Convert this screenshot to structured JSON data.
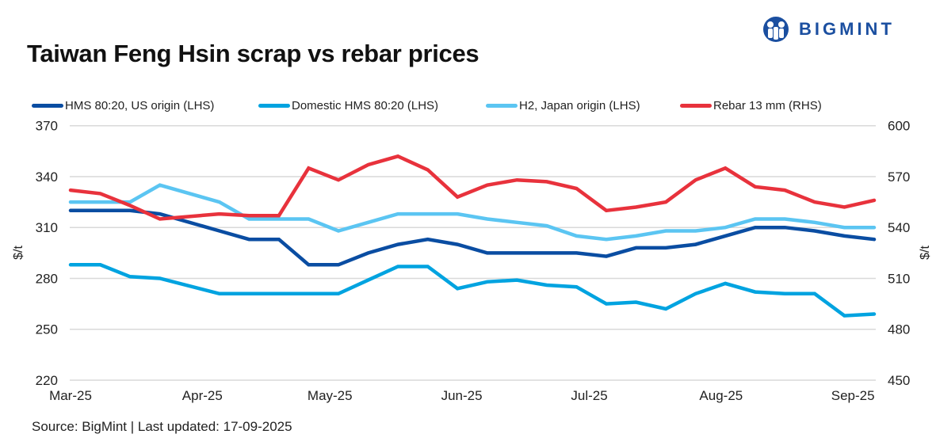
{
  "header": {
    "title": "Taiwan Feng Hsin scrap vs rebar prices",
    "logo_text": "BIGMINT",
    "logo_color": "#1b4fa0"
  },
  "footer": {
    "source": "Source: BigMint |  Last updated: 17-09-2025"
  },
  "chart_data": {
    "type": "line",
    "title": "Taiwan Feng Hsin scrap vs rebar prices",
    "ylabel_left": "$/t",
    "ylabel_right": "$/t",
    "ylim_left": [
      220,
      370
    ],
    "ylim_right": [
      450,
      600
    ],
    "yticks_left": [
      370,
      340,
      310,
      280,
      250,
      220
    ],
    "yticks_right": [
      600,
      570,
      540,
      510,
      480,
      450
    ],
    "xticks": [
      {
        "label": "Mar-25",
        "date": "2025-03-01"
      },
      {
        "label": "Apr-25",
        "date": "2025-04-01"
      },
      {
        "label": "May-25",
        "date": "2025-05-01"
      },
      {
        "label": "Jun-25",
        "date": "2025-06-01"
      },
      {
        "label": "Jul-25",
        "date": "2025-07-01"
      },
      {
        "label": "Aug-25",
        "date": "2025-08-01"
      },
      {
        "label": "Sep-25",
        "date": "2025-09-01"
      }
    ],
    "grid": true,
    "legend_position": "top",
    "x": [
      "2025-03-01",
      "2025-03-08",
      "2025-03-15",
      "2025-03-22",
      "2025-04-05",
      "2025-04-12",
      "2025-04-19",
      "2025-04-26",
      "2025-05-03",
      "2025-05-10",
      "2025-05-17",
      "2025-05-24",
      "2025-05-31",
      "2025-06-07",
      "2025-06-14",
      "2025-06-21",
      "2025-06-28",
      "2025-07-05",
      "2025-07-12",
      "2025-07-19",
      "2025-07-26",
      "2025-08-02",
      "2025-08-09",
      "2025-08-16",
      "2025-08-23",
      "2025-08-30",
      "2025-09-06"
    ],
    "series": [
      {
        "name": "HMS 80:20, US origin (LHS)",
        "axis": "left",
        "color": "#0a4da2",
        "values": [
          320,
          320,
          320,
          318,
          308,
          303,
          303,
          288,
          288,
          295,
          300,
          303,
          300,
          295,
          295,
          295,
          295,
          293,
          298,
          298,
          300,
          305,
          310,
          310,
          308,
          305,
          303
        ]
      },
      {
        "name": "Domestic HMS 80:20 (LHS)",
        "axis": "left",
        "color": "#00a3e0",
        "values": [
          288,
          288,
          281,
          280,
          271,
          271,
          271,
          271,
          271,
          279,
          287,
          287,
          274,
          278,
          279,
          276,
          275,
          265,
          266,
          262,
          271,
          277,
          272,
          271,
          271,
          258,
          259
        ]
      },
      {
        "name": "H2, Japan origin (LHS)",
        "axis": "left",
        "color": "#5bc5f2",
        "values": [
          325,
          325,
          325,
          335,
          325,
          315,
          315,
          315,
          308,
          313,
          318,
          318,
          318,
          315,
          313,
          311,
          305,
          303,
          305,
          308,
          308,
          310,
          315,
          315,
          313,
          310,
          310
        ]
      },
      {
        "name": "Rebar 13 mm (RHS)",
        "axis": "right",
        "color": "#e8323c",
        "values": [
          562,
          560,
          553,
          545,
          548,
          547,
          547,
          575,
          568,
          577,
          582,
          574,
          558,
          565,
          568,
          567,
          563,
          550,
          552,
          555,
          568,
          575,
          564,
          562,
          555,
          552,
          556
        ]
      }
    ]
  }
}
